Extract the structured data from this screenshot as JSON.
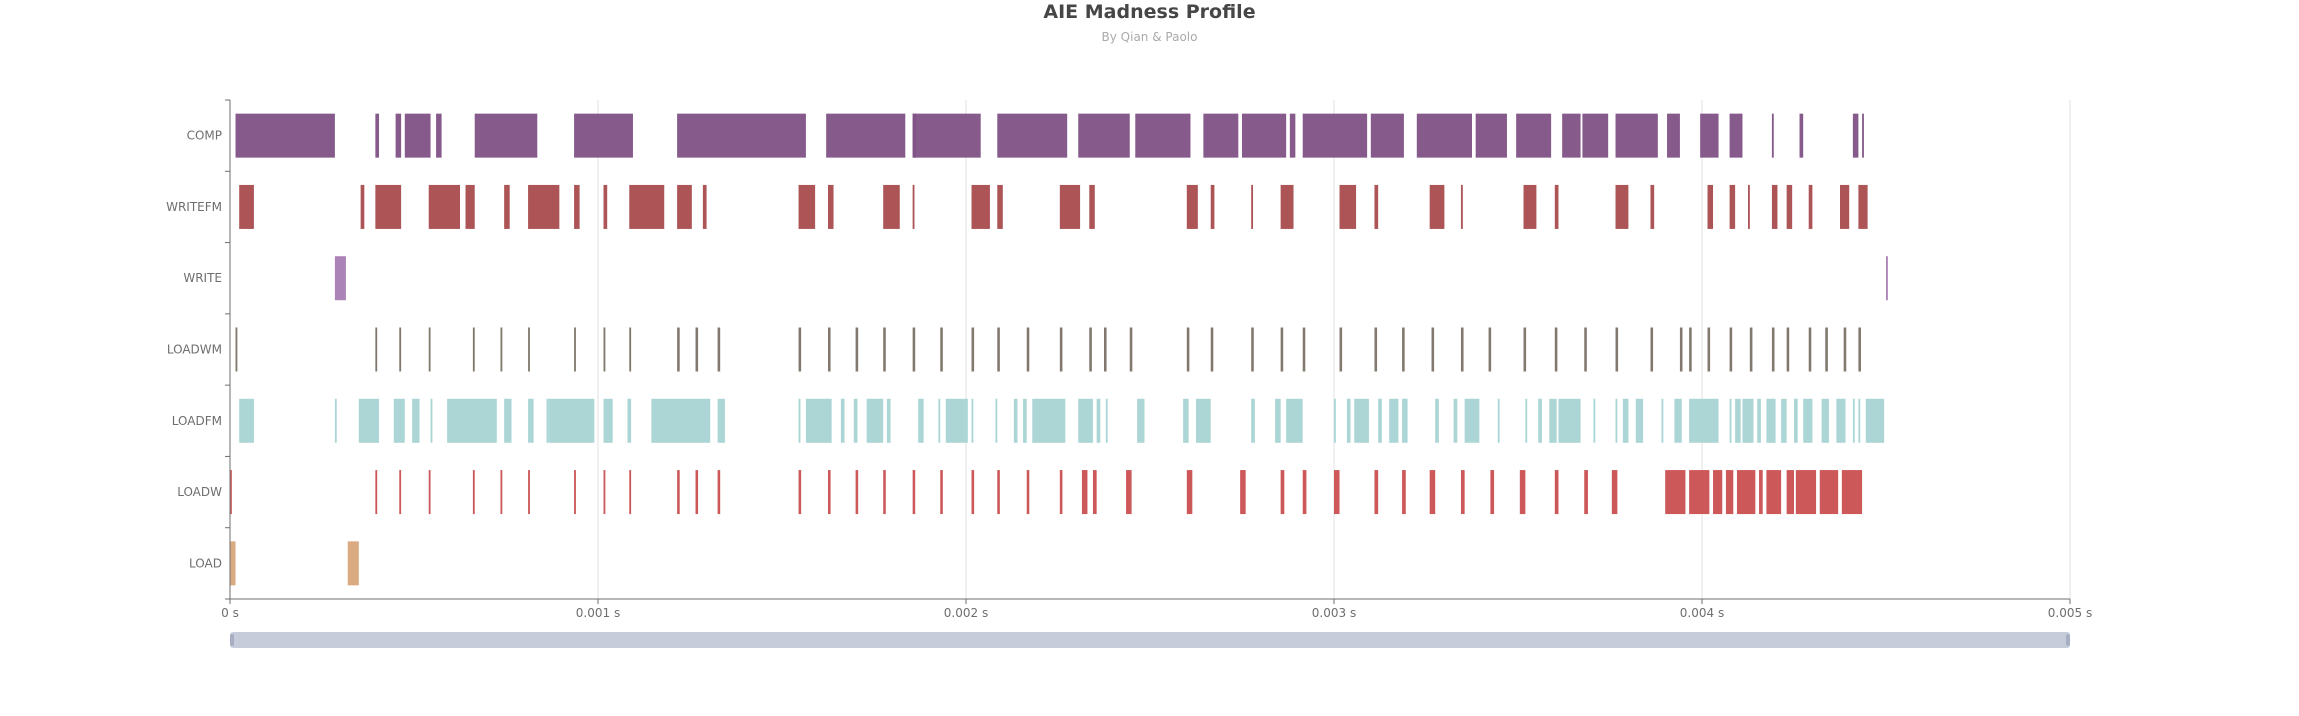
{
  "chart_data": {
    "type": "timeline",
    "title": "AIE Madness Profile",
    "subtitle": "By Qian & Paolo",
    "xlabel": "",
    "ylabel": "",
    "x_unit": "s",
    "xlim": [
      0,
      0.005
    ],
    "x_ticks": [
      "0 s",
      "0.001 s",
      "0.002 s",
      "0.003 s",
      "0.004 s",
      "0.005 s"
    ],
    "grid": "vertical",
    "data_zoom": {
      "start": 0,
      "end": 100
    },
    "categories": [
      "COMP",
      "WRITEFM",
      "WRITE",
      "LOADWM",
      "LOADFM",
      "LOADW",
      "LOAD"
    ],
    "colors": {
      "COMP": "#7f5286",
      "WRITEFM": "#a84b4d",
      "WRITE": "#a87cb2",
      "LOADWM": "#7a7266",
      "LOADFM": "#a8d4d4",
      "LOADW": "#c94f50",
      "LOAD": "#d8a67a"
    },
    "series": [
      {
        "category": "COMP",
        "intervals": [
          [
            1.5e-05,
            0.000285
          ],
          [
            0.000395,
            0.000405
          ],
          [
            0.00045,
            0.000465
          ],
          [
            0.000475,
            0.000545
          ],
          [
            0.00056,
            0.000575
          ],
          [
            0.000665,
            0.000835
          ],
          [
            0.000935,
            0.001095
          ],
          [
            0.001215,
            0.001565
          ],
          [
            0.00162,
            0.001835
          ],
          [
            0.001855,
            0.001865
          ],
          [
            0.001855,
            0.00204
          ],
          [
            0.002085,
            0.002275
          ],
          [
            0.002305,
            0.002445
          ],
          [
            0.00246,
            0.00261
          ],
          [
            0.002645,
            0.00274
          ],
          [
            0.00275,
            0.00287
          ],
          [
            0.00288,
            0.002895
          ],
          [
            0.002915,
            0.00309
          ],
          [
            0.0031,
            0.00319
          ],
          [
            0.003225,
            0.003375
          ],
          [
            0.003385,
            0.00347
          ],
          [
            0.003495,
            0.00359
          ],
          [
            0.00362,
            0.00367
          ],
          [
            0.003675,
            0.003745
          ],
          [
            0.003765,
            0.00388
          ],
          [
            0.003905,
            0.00394
          ],
          [
            0.003995,
            0.004045
          ],
          [
            0.004075,
            0.00411
          ],
          [
            0.00419,
            0.004195
          ],
          [
            0.004265,
            0.004275
          ],
          [
            0.00441,
            0.004425
          ],
          [
            0.004435,
            0.00444
          ]
        ]
      },
      {
        "category": "WRITEFM",
        "intervals": [
          [
            2.5e-05,
            6.5e-05
          ],
          [
            0.000355,
            0.000365
          ],
          [
            0.000395,
            0.000465
          ],
          [
            0.00054,
            0.000625
          ],
          [
            0.00064,
            0.000665
          ],
          [
            0.000745,
            0.00076
          ],
          [
            0.00081,
            0.000895
          ],
          [
            0.000935,
            0.00095
          ],
          [
            0.001015,
            0.001025
          ],
          [
            0.001085,
            0.00118
          ],
          [
            0.001215,
            0.001255
          ],
          [
            0.001285,
            0.001295
          ],
          [
            0.001545,
            0.00159
          ],
          [
            0.001625,
            0.00164
          ],
          [
            0.001775,
            0.00182
          ],
          [
            0.001855,
            0.00186
          ],
          [
            0.002015,
            0.002065
          ],
          [
            0.002085,
            0.0021
          ],
          [
            0.002255,
            0.00231
          ],
          [
            0.002335,
            0.00235
          ],
          [
            0.0026,
            0.00263
          ],
          [
            0.002665,
            0.002675
          ],
          [
            0.002775,
            0.00278
          ],
          [
            0.002855,
            0.00289
          ],
          [
            0.003015,
            0.00306
          ],
          [
            0.00311,
            0.00312
          ],
          [
            0.00326,
            0.0033
          ],
          [
            0.003345,
            0.00335
          ],
          [
            0.003515,
            0.00355
          ],
          [
            0.0036,
            0.00361
          ],
          [
            0.003765,
            0.0038
          ],
          [
            0.00386,
            0.00387
          ],
          [
            0.004015,
            0.00403
          ],
          [
            0.004075,
            0.00409
          ],
          [
            0.004125,
            0.00413
          ],
          [
            0.00419,
            0.004205
          ],
          [
            0.00423,
            0.004245
          ],
          [
            0.00429,
            0.0043
          ],
          [
            0.004375,
            0.0044
          ],
          [
            0.004425,
            0.00445
          ]
        ]
      },
      {
        "category": "WRITE",
        "intervals": [
          [
            0.000285,
            0.000315
          ],
          [
            0.0045,
            0.004505
          ]
        ]
      },
      {
        "category": "LOADWM",
        "intervals": [
          [
            1.5e-05,
            2e-05
          ],
          [
            0.000395,
            0.0004
          ],
          [
            0.00046,
            0.000465
          ],
          [
            0.00054,
            0.000545
          ],
          [
            0.00066,
            0.000665
          ],
          [
            0.000735,
            0.00074
          ],
          [
            0.00081,
            0.000815
          ],
          [
            0.000935,
            0.00094
          ],
          [
            0.001015,
            0.00102
          ],
          [
            0.001085,
            0.00109
          ],
          [
            0.001215,
            0.001222
          ],
          [
            0.001265,
            0.001272
          ],
          [
            0.001325,
            0.001332
          ],
          [
            0.001545,
            0.001552
          ],
          [
            0.001625,
            0.001632
          ],
          [
            0.0017,
            0.001707
          ],
          [
            0.001775,
            0.001782
          ],
          [
            0.001855,
            0.001862
          ],
          [
            0.00193,
            0.001937
          ],
          [
            0.002015,
            0.002022
          ],
          [
            0.002085,
            0.002092
          ],
          [
            0.002165,
            0.002172
          ],
          [
            0.002255,
            0.002262
          ],
          [
            0.002335,
            0.002342
          ],
          [
            0.002375,
            0.002382
          ],
          [
            0.002445,
            0.002452
          ],
          [
            0.0026,
            0.002607
          ],
          [
            0.002665,
            0.002672
          ],
          [
            0.002775,
            0.002782
          ],
          [
            0.002855,
            0.002862
          ],
          [
            0.002915,
            0.002922
          ],
          [
            0.003015,
            0.003022
          ],
          [
            0.00311,
            0.003117
          ],
          [
            0.003185,
            0.003192
          ],
          [
            0.003265,
            0.003272
          ],
          [
            0.003345,
            0.003352
          ],
          [
            0.00342,
            0.003427
          ],
          [
            0.003515,
            0.003522
          ],
          [
            0.0036,
            0.003607
          ],
          [
            0.00368,
            0.003687
          ],
          [
            0.003765,
            0.003772
          ],
          [
            0.00386,
            0.003867
          ],
          [
            0.00394,
            0.003947
          ],
          [
            0.003965,
            0.003972
          ],
          [
            0.004015,
            0.004022
          ],
          [
            0.004075,
            0.004082
          ],
          [
            0.00413,
            0.004137
          ],
          [
            0.00419,
            0.004197
          ],
          [
            0.00423,
            0.004237
          ],
          [
            0.00429,
            0.004297
          ],
          [
            0.004335,
            0.004342
          ],
          [
            0.004385,
            0.004392
          ],
          [
            0.004425,
            0.004432
          ]
        ]
      },
      {
        "category": "LOADFM",
        "intervals": [
          [
            2.5e-05,
            6.5e-05
          ],
          [
            0.000285,
            0.00029
          ],
          [
            0.00035,
            0.000405
          ],
          [
            0.000445,
            0.000475
          ],
          [
            0.000495,
            0.000515
          ],
          [
            0.000545,
            0.00055
          ],
          [
            0.00059,
            0.000725
          ],
          [
            0.000745,
            0.000765
          ],
          [
            0.00081,
            0.000825
          ],
          [
            0.00086,
            0.000865
          ],
          [
            0.000865,
            0.00099
          ],
          [
            0.001015,
            0.00104
          ],
          [
            0.00108,
            0.00109
          ],
          [
            0.001145,
            0.001305
          ],
          [
            0.001325,
            0.001345
          ],
          [
            0.001545,
            0.00155
          ],
          [
            0.001565,
            0.001635
          ],
          [
            0.00166,
            0.00167
          ],
          [
            0.001695,
            0.001705
          ],
          [
            0.00173,
            0.001775
          ],
          [
            0.001785,
            0.001795
          ],
          [
            0.00187,
            0.001885
          ],
          [
            0.001925,
            0.00193
          ],
          [
            0.001945,
            0.002005
          ],
          [
            0.002015,
            0.00202
          ],
          [
            0.00208,
            0.002085
          ],
          [
            0.00213,
            0.00214
          ],
          [
            0.002155,
            0.002165
          ],
          [
            0.00218,
            0.00227
          ],
          [
            0.002305,
            0.002345
          ],
          [
            0.002355,
            0.002365
          ],
          [
            0.00238,
            0.002385
          ],
          [
            0.002465,
            0.002485
          ],
          [
            0.00259,
            0.002605
          ],
          [
            0.002625,
            0.002665
          ],
          [
            0.002775,
            0.002785
          ],
          [
            0.00284,
            0.002855
          ],
          [
            0.00287,
            0.002915
          ],
          [
            0.003,
            0.003005
          ],
          [
            0.003035,
            0.003045
          ],
          [
            0.003055,
            0.003095
          ],
          [
            0.00312,
            0.00313
          ],
          [
            0.00315,
            0.003175
          ],
          [
            0.003185,
            0.0032
          ],
          [
            0.003275,
            0.003285
          ],
          [
            0.003325,
            0.003335
          ],
          [
            0.003355,
            0.003395
          ],
          [
            0.003445,
            0.00345
          ],
          [
            0.00352,
            0.003525
          ],
          [
            0.003555,
            0.003565
          ],
          [
            0.003585,
            0.003605
          ],
          [
            0.00361,
            0.00367
          ],
          [
            0.003705,
            0.00371
          ],
          [
            0.003765,
            0.00377
          ],
          [
            0.003785,
            0.0038
          ],
          [
            0.00382,
            0.00384
          ],
          [
            0.00389,
            0.003895
          ],
          [
            0.003925,
            0.003945
          ],
          [
            0.003965,
            0.004045
          ],
          [
            0.004075,
            0.00408
          ],
          [
            0.00409,
            0.004105
          ],
          [
            0.00411,
            0.00414
          ],
          [
            0.00415,
            0.00416
          ],
          [
            0.004175,
            0.0042
          ],
          [
            0.004215,
            0.00423
          ],
          [
            0.00425,
            0.00426
          ],
          [
            0.004275,
            0.0043
          ],
          [
            0.004325,
            0.004345
          ],
          [
            0.004365,
            0.00439
          ],
          [
            0.00441,
            0.004415
          ],
          [
            0.004425,
            0.00443
          ],
          [
            0.004445,
            0.004495
          ]
        ]
      },
      {
        "category": "LOADW",
        "intervals": [
          [
            0.0,
            5e-06
          ],
          [
            0.000395,
            0.0004
          ],
          [
            0.00046,
            0.000465
          ],
          [
            0.00054,
            0.000545
          ],
          [
            0.00066,
            0.000665
          ],
          [
            0.000735,
            0.00074
          ],
          [
            0.00081,
            0.000815
          ],
          [
            0.000935,
            0.00094
          ],
          [
            0.001015,
            0.00102
          ],
          [
            0.001085,
            0.00109
          ],
          [
            0.001215,
            0.001222
          ],
          [
            0.001265,
            0.001272
          ],
          [
            0.001325,
            0.001332
          ],
          [
            0.001545,
            0.001552
          ],
          [
            0.001625,
            0.001632
          ],
          [
            0.0017,
            0.001707
          ],
          [
            0.001775,
            0.001782
          ],
          [
            0.001855,
            0.001862
          ],
          [
            0.00193,
            0.001937
          ],
          [
            0.002015,
            0.002022
          ],
          [
            0.002085,
            0.002092
          ],
          [
            0.002165,
            0.002172
          ],
          [
            0.002255,
            0.002262
          ],
          [
            0.002315,
            0.00233
          ],
          [
            0.002345,
            0.002355
          ],
          [
            0.002435,
            0.00245
          ],
          [
            0.0026,
            0.002615
          ],
          [
            0.002745,
            0.00276
          ],
          [
            0.002855,
            0.002865
          ],
          [
            0.002915,
            0.002925
          ],
          [
            0.003,
            0.003015
          ],
          [
            0.00311,
            0.00312
          ],
          [
            0.003185,
            0.003195
          ],
          [
            0.00326,
            0.003275
          ],
          [
            0.003345,
            0.003355
          ],
          [
            0.003425,
            0.003435
          ],
          [
            0.003505,
            0.00352
          ],
          [
            0.0036,
            0.00361
          ],
          [
            0.00368,
            0.00369
          ],
          [
            0.003755,
            0.00377
          ],
          [
            0.0039,
            0.003955
          ],
          [
            0.003965,
            0.00402
          ],
          [
            0.00403,
            0.004055
          ],
          [
            0.004065,
            0.004085
          ],
          [
            0.004095,
            0.004145
          ],
          [
            0.004155,
            0.004165
          ],
          [
            0.004175,
            0.004215
          ],
          [
            0.00423,
            0.00425
          ],
          [
            0.004255,
            0.00431
          ],
          [
            0.00432,
            0.00437
          ],
          [
            0.00438,
            0.004435
          ]
        ]
      },
      {
        "category": "LOAD",
        "intervals": [
          [
            0.0,
            1.5e-05
          ],
          [
            0.00032,
            0.00035
          ]
        ]
      }
    ]
  }
}
